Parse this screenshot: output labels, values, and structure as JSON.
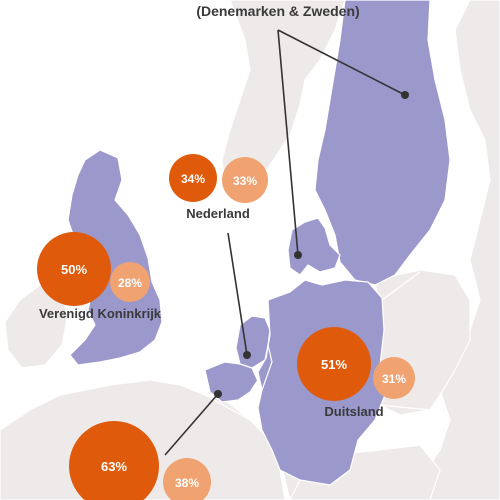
{
  "colors": {
    "land_other": "#eeeaea",
    "land_highlight": "#9b98cc",
    "border": "#ffffff",
    "bubble_dark": "#e05a0c",
    "bubble_light": "#f0a271",
    "leader_line": "#333333",
    "label_text": "#3a3a3a"
  },
  "title_fragment": "(Denemarken & Zweden)",
  "regions": [
    {
      "name": "Verenigd Koninkrijk",
      "value_dark": "50%",
      "value_light": "28%"
    },
    {
      "name": "Nederland",
      "value_dark": "34%",
      "value_light": "33%"
    },
    {
      "name": "Duitsland",
      "value_dark": "51%",
      "value_light": "31%"
    },
    {
      "name": "",
      "value_dark": "63%",
      "value_light": "38%"
    }
  ]
}
